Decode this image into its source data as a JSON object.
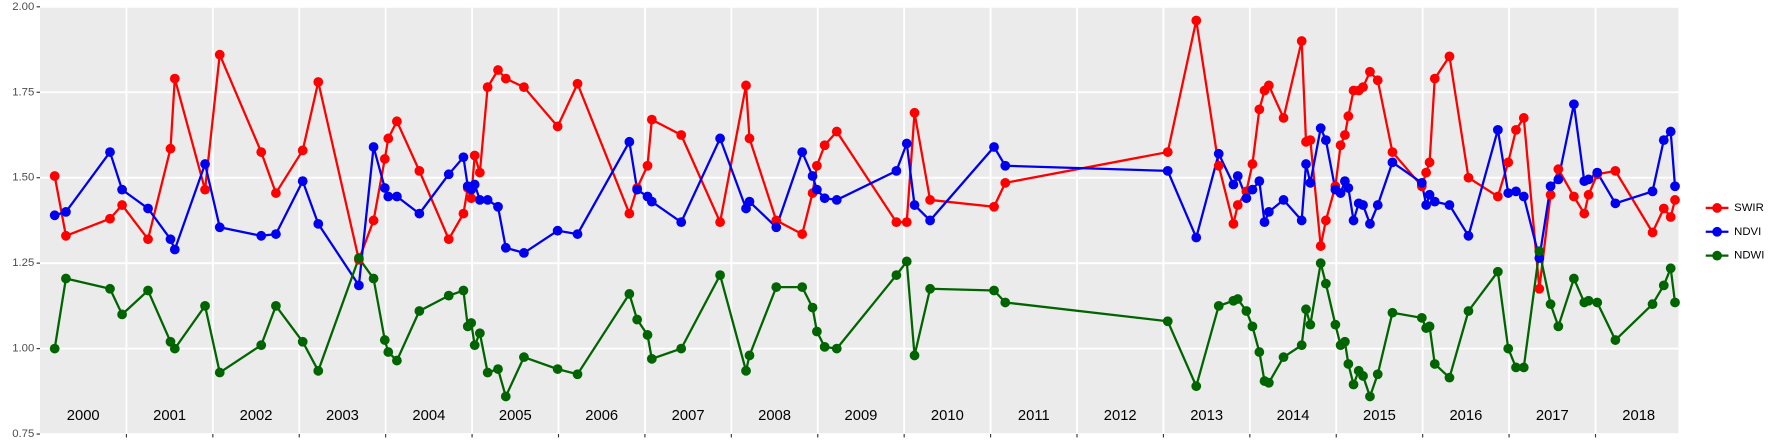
{
  "chart_data": {
    "type": "line",
    "x": [
      2000.17,
      2000.3,
      2000.81,
      2000.95,
      2001.25,
      2001.51,
      2001.56,
      2001.91,
      2002.08,
      2002.56,
      2002.73,
      2003.04,
      2003.22,
      2003.69,
      2003.86,
      2003.99,
      2004.03,
      2004.13,
      2004.39,
      2004.73,
      2004.9,
      2004.95,
      2004.99,
      2005.03,
      2005.09,
      2005.18,
      2005.3,
      2005.39,
      2005.6,
      2005.99,
      2006.22,
      2006.82,
      2006.91,
      2007.03,
      2007.08,
      2007.42,
      2007.87,
      2008.17,
      2008.21,
      2008.52,
      2008.82,
      2008.94,
      2008.99,
      2009.08,
      2009.22,
      2009.91,
      2010.03,
      2010.12,
      2010.3,
      2011.04,
      2011.17,
      2013.05,
      2013.38,
      2013.64,
      2013.81,
      2013.86,
      2013.96,
      2014.03,
      2014.11,
      2014.17,
      2014.22,
      2014.39,
      2014.6,
      2014.65,
      2014.7,
      2014.82,
      2014.88,
      2014.99,
      2015.05,
      2015.1,
      2015.14,
      2015.2,
      2015.26,
      2015.31,
      2015.39,
      2015.48,
      2015.65,
      2015.99,
      2016.04,
      2016.08,
      2016.14,
      2016.31,
      2016.53,
      2016.87,
      2016.99,
      2017.08,
      2017.17,
      2017.35,
      2017.48,
      2017.57,
      2017.75,
      2017.87,
      2017.92,
      2018.02,
      2018.23,
      2018.66,
      2018.79,
      2018.87,
      2018.92
    ],
    "series": [
      {
        "name": "SWIR",
        "color": "#ff0000",
        "values": [
          1.505,
          1.33,
          1.38,
          1.42,
          1.32,
          1.585,
          1.79,
          1.465,
          1.86,
          1.575,
          1.455,
          1.58,
          1.78,
          1.26,
          1.375,
          1.555,
          1.615,
          1.665,
          1.52,
          1.32,
          1.395,
          1.47,
          1.44,
          1.565,
          1.515,
          1.765,
          1.815,
          1.79,
          1.765,
          1.65,
          1.775,
          1.395,
          1.47,
          1.535,
          1.67,
          1.625,
          1.37,
          1.77,
          1.615,
          1.375,
          1.335,
          1.455,
          1.535,
          1.595,
          1.635,
          1.37,
          1.37,
          1.69,
          1.435,
          1.415,
          1.485,
          1.575,
          1.96,
          1.535,
          1.365,
          1.42,
          1.46,
          1.54,
          1.7,
          1.755,
          1.77,
          1.675,
          1.9,
          1.605,
          1.61,
          1.3,
          1.375,
          1.475,
          1.595,
          1.625,
          1.68,
          1.755,
          1.755,
          1.765,
          1.81,
          1.785,
          1.575,
          1.475,
          1.515,
          1.545,
          1.79,
          1.855,
          1.5,
          1.445,
          1.545,
          1.64,
          1.675,
          1.175,
          1.45,
          1.525,
          1.445,
          1.395,
          1.45,
          1.51,
          1.52,
          1.34,
          1.41,
          1.385,
          1.435
        ]
      },
      {
        "name": "NDVI",
        "color": "#0000ee",
        "values": [
          1.39,
          1.4,
          1.575,
          1.465,
          1.41,
          1.32,
          1.29,
          1.54,
          1.355,
          1.33,
          1.335,
          1.49,
          1.365,
          1.185,
          1.59,
          1.47,
          1.445,
          1.445,
          1.395,
          1.51,
          1.56,
          1.475,
          1.465,
          1.48,
          1.435,
          1.435,
          1.415,
          1.295,
          1.28,
          1.345,
          1.335,
          1.605,
          1.465,
          1.445,
          1.43,
          1.37,
          1.615,
          1.41,
          1.43,
          1.355,
          1.575,
          1.505,
          1.465,
          1.44,
          1.435,
          1.52,
          1.6,
          1.42,
          1.375,
          1.59,
          1.535,
          1.52,
          1.325,
          1.57,
          1.48,
          1.505,
          1.44,
          1.465,
          1.49,
          1.37,
          1.4,
          1.435,
          1.375,
          1.54,
          1.485,
          1.645,
          1.61,
          1.465,
          1.455,
          1.49,
          1.47,
          1.375,
          1.425,
          1.42,
          1.365,
          1.42,
          1.545,
          1.485,
          1.42,
          1.45,
          1.43,
          1.42,
          1.33,
          1.64,
          1.455,
          1.46,
          1.445,
          1.265,
          1.475,
          1.495,
          1.715,
          1.49,
          1.495,
          1.515,
          1.425,
          1.46,
          1.61,
          1.635,
          1.475
        ]
      },
      {
        "name": "NDWI",
        "color": "#006400",
        "values": [
          1.0,
          1.205,
          1.175,
          1.1,
          1.17,
          1.02,
          1.0,
          1.125,
          0.93,
          1.01,
          1.125,
          1.02,
          0.935,
          1.265,
          1.205,
          1.025,
          0.99,
          0.965,
          1.11,
          1.155,
          1.17,
          1.065,
          1.075,
          1.01,
          1.045,
          0.93,
          0.94,
          0.86,
          0.975,
          0.94,
          0.925,
          1.16,
          1.085,
          1.04,
          0.97,
          1.0,
          1.215,
          0.935,
          0.98,
          1.18,
          1.18,
          1.12,
          1.05,
          1.005,
          1.0,
          1.215,
          1.255,
          0.98,
          1.175,
          1.17,
          1.135,
          1.08,
          0.89,
          1.125,
          1.14,
          1.145,
          1.11,
          1.065,
          0.99,
          0.905,
          0.9,
          0.975,
          1.01,
          1.115,
          1.07,
          1.25,
          1.19,
          1.07,
          1.01,
          1.02,
          0.955,
          0.895,
          0.935,
          0.92,
          0.86,
          0.925,
          1.105,
          1.09,
          1.06,
          1.065,
          0.955,
          0.915,
          1.11,
          1.225,
          1.0,
          0.945,
          0.945,
          1.285,
          1.13,
          1.065,
          1.205,
          1.135,
          1.14,
          1.135,
          1.025,
          1.13,
          1.185,
          1.235,
          1.135
        ]
      }
    ],
    "xlim": [
      2000,
      2018.96
    ],
    "xticks": [
      2001,
      2002,
      2003,
      2004,
      2005,
      2006,
      2007,
      2008,
      2009,
      2010,
      2011,
      2012,
      2013,
      2014,
      2015,
      2016,
      2017,
      2018
    ],
    "year_labels": [
      "2000",
      "2001",
      "2002",
      "2003",
      "2004",
      "2005",
      "2006",
      "2007",
      "2008",
      "2009",
      "2010",
      "2011",
      "2012",
      "2013",
      "2014",
      "2015",
      "2016",
      "2017",
      "2018"
    ],
    "ylim": [
      0.75,
      2.0
    ],
    "yticks": [
      0.75,
      {
        "value": 1.0,
        "label": "1.00"
      },
      1.25,
      {
        "value": 1.5,
        "label": "1.50"
      },
      1.75,
      {
        "value": 2.0,
        "label": "2.00"
      }
    ],
    "grid": true,
    "legend": "right"
  }
}
